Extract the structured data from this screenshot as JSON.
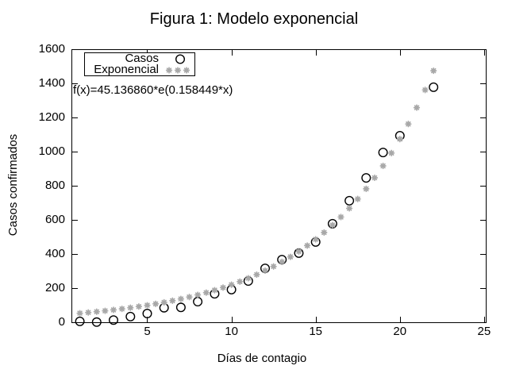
{
  "title": "Figura 1: Modelo exponencial",
  "annotation": "f(x)=45.136860*e(0.158449*x)",
  "axes": {
    "x_label": "Días de contagio",
    "y_label": "Casos confirmados",
    "x_ticks": [
      5,
      10,
      15,
      20,
      25
    ],
    "y_ticks": [
      0,
      200,
      400,
      600,
      800,
      1000,
      1200,
      1400,
      1600
    ]
  },
  "legend": {
    "entries": [
      {
        "label": "Casos",
        "marker": "open-circle",
        "color": "#000000"
      },
      {
        "label": "Exponencial",
        "marker": "asterisk",
        "color": "#a8a8a8"
      }
    ]
  },
  "colors": {
    "foreground": "#000000",
    "fit_gray": "#a8a8a8",
    "background": "#ffffff"
  },
  "chart_data": {
    "type": "scatter",
    "title": "Figura 1: Modelo exponencial",
    "xlabel": "Días de contagio",
    "ylabel": "Casos confirmados",
    "xlim": [
      0.5,
      25.1
    ],
    "ylim": [
      0,
      1600
    ],
    "grid": false,
    "legend_position": "top-left-inside",
    "annotation": "f(x)=45.136860*e(0.158449*x)",
    "series": [
      {
        "name": "Casos",
        "marker": "open-circle",
        "color": "#000000",
        "x": [
          1,
          2,
          3,
          4,
          5,
          6,
          7,
          8,
          9,
          10,
          11,
          12,
          13,
          14,
          15,
          16,
          17,
          18,
          19,
          20,
          22
        ],
        "y": [
          5,
          1,
          13,
          33,
          51,
          85,
          87,
          121,
          167,
          191,
          242,
          316,
          367,
          405,
          470,
          577,
          712,
          846,
          995,
          1093,
          1377
        ]
      },
      {
        "name": "Exponencial",
        "marker": "asterisk",
        "color": "#a8a8a8",
        "fit": {
          "formula": "f(x)=45.136860*e(0.158449*x)",
          "a": 45.13686,
          "b": 0.158449,
          "x_start": 1,
          "x_end": 22,
          "x_step": 0.5
        }
      }
    ]
  }
}
